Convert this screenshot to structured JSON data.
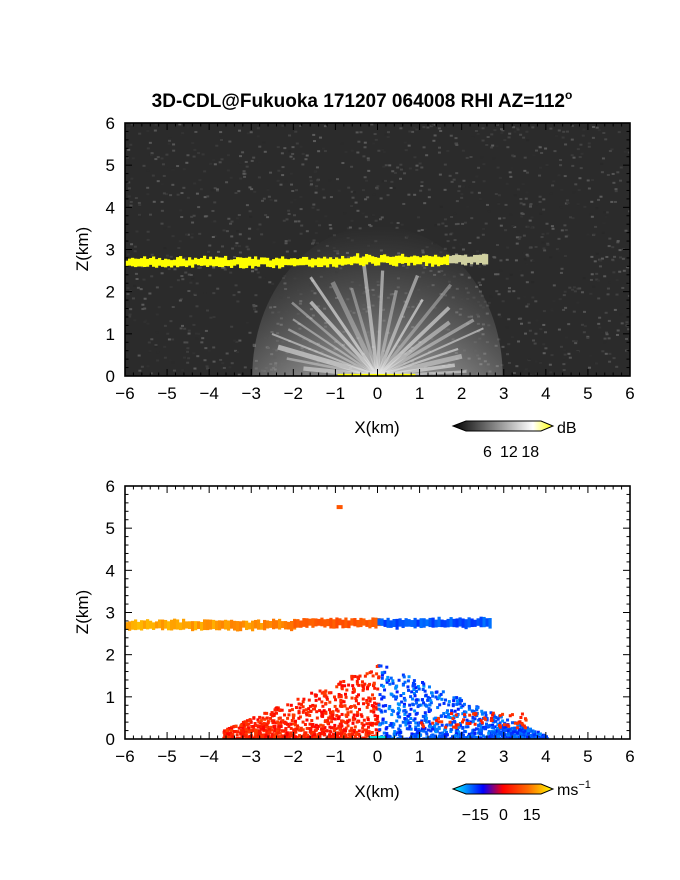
{
  "title": "3D-CDL@Fukuoka 171207 064008 RHI AZ=112",
  "title_degree": "o",
  "chart_data": [
    {
      "type": "heatmap",
      "name": "reflectivity-rhi",
      "xlabel": "X(km)",
      "ylabel": "Z(km)",
      "xlim": [
        -6,
        6
      ],
      "ylim": [
        0,
        6
      ],
      "x_ticks": [
        "-6",
        "-5",
        "-4",
        "-3",
        "-2",
        "-1",
        "0",
        "1",
        "2",
        "3",
        "4",
        "5",
        "6"
      ],
      "y_ticks": [
        "0",
        "1",
        "2",
        "3",
        "4",
        "5",
        "6"
      ],
      "background_color": "#2b2b2b",
      "features": [
        {
          "kind": "layer",
          "x_range": [
            -6,
            2.6
          ],
          "z_center": 2.7,
          "color": "#ffff00"
        },
        {
          "kind": "radial-clutter",
          "origin": [
            0,
            0
          ],
          "max_range_km": 3.5,
          "color": "#d8d8d8"
        }
      ],
      "colorbar": {
        "unit": "dB",
        "ticks": [
          "6",
          "12",
          "18"
        ],
        "range": [
          0,
          21
        ],
        "colors": [
          "#000000",
          "#ffffff",
          "#ffff00"
        ]
      }
    },
    {
      "type": "heatmap",
      "name": "doppler-velocity-rhi",
      "xlabel": "X(km)",
      "ylabel": "Z(km)",
      "xlim": [
        -6,
        6
      ],
      "ylim": [
        0,
        6
      ],
      "x_ticks": [
        "-6",
        "-5",
        "-4",
        "-3",
        "-2",
        "-1",
        "0",
        "1",
        "2",
        "3",
        "4",
        "5",
        "6"
      ],
      "y_ticks": [
        "0",
        "1",
        "2",
        "3",
        "4",
        "5",
        "6"
      ],
      "features": [
        {
          "kind": "layer",
          "x_range": [
            -6,
            -2
          ],
          "z_center": 2.7,
          "velocity_ms": 15
        },
        {
          "kind": "layer",
          "x_range": [
            -2,
            0
          ],
          "z_center": 2.75,
          "velocity_ms": 8
        },
        {
          "kind": "layer",
          "x_range": [
            0,
            2.7
          ],
          "z_center": 2.75,
          "velocity_ms": -12
        },
        {
          "kind": "fan",
          "x_range": [
            -3.7,
            0
          ],
          "z_max": 1.8,
          "velocity_ms": 3
        },
        {
          "kind": "fan",
          "x_range": [
            0,
            4
          ],
          "z_max": 1.8,
          "velocity_ms": -12
        },
        {
          "kind": "point",
          "x": -0.9,
          "z": 5.5,
          "velocity_ms": 8
        }
      ],
      "colorbar": {
        "unit": "ms",
        "unit_superscript": "−1",
        "ticks": [
          "−15",
          "0",
          "15"
        ],
        "range": [
          -20,
          20
        ],
        "colors": [
          "#00ffff",
          "#0000ff",
          "#ff0000",
          "#ffff00"
        ]
      }
    }
  ]
}
